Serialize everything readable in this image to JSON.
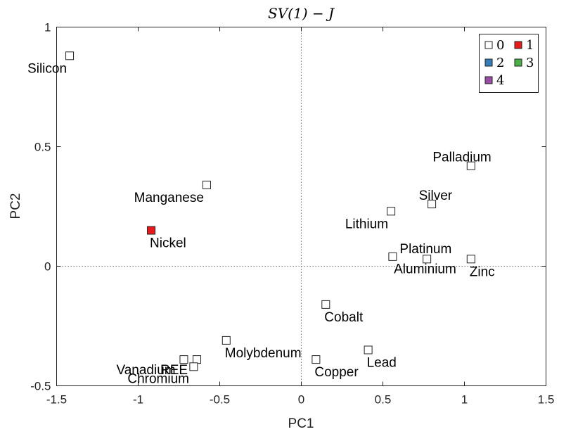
{
  "chart_data": {
    "type": "scatter",
    "title": "SV(1) − J",
    "xlabel": "PC1",
    "ylabel": "PC2",
    "xlim": [
      -1.5,
      1.5
    ],
    "ylim": [
      -0.5,
      1
    ],
    "xticks": [
      -1.5,
      -1,
      -0.5,
      0,
      0.5,
      1,
      1.5
    ],
    "xtick_labels": [
      "-1.5",
      "-1",
      "-0.5",
      "0",
      "0.5",
      "1",
      "1.5"
    ],
    "yticks": [
      -0.5,
      0,
      0.5,
      1
    ],
    "ytick_labels": [
      "-0.5",
      "0",
      "0.5",
      "1"
    ],
    "grid": false,
    "zero_lines": true,
    "legend_position": "top-right",
    "cluster_colors": {
      "0": "#ffffff",
      "1": "#e41a1c",
      "2": "#377eb8",
      "3": "#4daf4a",
      "4": "#984ea3"
    },
    "legend": [
      {
        "label": "0",
        "cluster": "0"
      },
      {
        "label": "1",
        "cluster": "1"
      },
      {
        "label": "2",
        "cluster": "2"
      },
      {
        "label": "3",
        "cluster": "3"
      },
      {
        "label": "4",
        "cluster": "4"
      }
    ],
    "points": [
      {
        "name": "Silicon",
        "x": -1.42,
        "y": 0.88,
        "cluster": "0",
        "label_pos": "below-left"
      },
      {
        "name": "Manganese",
        "x": -0.58,
        "y": 0.34,
        "cluster": "0",
        "label_pos": "below-left"
      },
      {
        "name": "Nickel",
        "x": -0.92,
        "y": 0.15,
        "cluster": "1",
        "label_pos": "below-right"
      },
      {
        "name": "Palladium",
        "x": 1.04,
        "y": 0.42,
        "cluster": "0",
        "label_pos": "above-left"
      },
      {
        "name": "Silver",
        "x": 0.8,
        "y": 0.26,
        "cluster": "0",
        "label_pos": "above-left"
      },
      {
        "name": "Lithium",
        "x": 0.55,
        "y": 0.23,
        "cluster": "0",
        "label_pos": "below-left"
      },
      {
        "name": "Platinum",
        "x": 0.56,
        "y": 0.04,
        "cluster": "0",
        "label_pos": "above-right"
      },
      {
        "name": "Aluminium",
        "x": 0.77,
        "y": 0.03,
        "cluster": "0",
        "label_pos": "below-mid"
      },
      {
        "name": "Zinc",
        "x": 1.04,
        "y": 0.03,
        "cluster": "0",
        "label_pos": "below-right"
      },
      {
        "name": "Cobalt",
        "x": 0.15,
        "y": -0.16,
        "cluster": "0",
        "label_pos": "below-right"
      },
      {
        "name": "Molybdenum",
        "x": -0.46,
        "y": -0.31,
        "cluster": "0",
        "label_pos": "below-right"
      },
      {
        "name": "Copper",
        "x": 0.09,
        "y": -0.39,
        "cluster": "0",
        "label_pos": "below-right"
      },
      {
        "name": "Lead",
        "x": 0.41,
        "y": -0.35,
        "cluster": "0",
        "label_pos": "below-right"
      },
      {
        "name": "Vanadium",
        "x": -0.72,
        "y": -0.39,
        "cluster": "0",
        "label_pos": "vanadium"
      },
      {
        "name": "REE",
        "x": -0.64,
        "y": -0.39,
        "cluster": "0",
        "label_pos": "ree"
      },
      {
        "name": "Chromium",
        "x": -0.66,
        "y": -0.42,
        "cluster": "0",
        "label_pos": "chromium"
      }
    ]
  }
}
